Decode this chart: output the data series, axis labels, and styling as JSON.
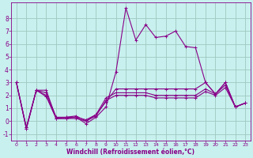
{
  "xlabel": "Windchill (Refroidissement éolien,°C)",
  "background_color": "#c8f0ee",
  "grid_color": "#a0c8c0",
  "line_color": "#880088",
  "xlim": [
    -0.5,
    23.5
  ],
  "ylim": [
    -1.5,
    9.2
  ],
  "yticks": [
    -1,
    0,
    1,
    2,
    3,
    4,
    5,
    6,
    7,
    8
  ],
  "xticks": [
    0,
    1,
    2,
    3,
    4,
    5,
    6,
    7,
    8,
    9,
    10,
    11,
    12,
    13,
    14,
    15,
    16,
    17,
    18,
    19,
    20,
    21,
    22,
    23
  ],
  "line1_x": [
    0,
    1,
    2,
    3,
    4,
    5,
    6,
    7,
    8,
    9,
    10,
    11,
    12,
    13,
    14,
    15,
    16,
    17,
    18,
    19,
    20,
    21,
    22,
    23
  ],
  "line1_y": [
    3.0,
    -0.6,
    2.4,
    1.9,
    0.2,
    0.2,
    0.3,
    -0.2,
    0.3,
    1.1,
    3.8,
    8.8,
    6.3,
    7.5,
    6.5,
    6.6,
    7.0,
    5.8,
    5.7,
    3.0,
    2.1,
    3.0,
    1.1,
    1.4
  ],
  "line2_x": [
    0,
    1,
    2,
    3,
    4,
    5,
    6,
    7,
    8,
    9,
    10,
    11,
    12,
    13,
    14,
    15,
    16,
    17,
    18,
    19,
    20,
    21,
    22,
    23
  ],
  "line2_y": [
    3.0,
    -0.6,
    2.4,
    2.4,
    0.2,
    0.3,
    0.4,
    0.0,
    0.5,
    1.5,
    2.5,
    2.5,
    2.5,
    2.5,
    2.5,
    2.5,
    2.5,
    2.5,
    2.5,
    3.0,
    2.1,
    3.0,
    1.1,
    1.4
  ],
  "line3_x": [
    0,
    1,
    2,
    3,
    4,
    5,
    6,
    7,
    8,
    9,
    10,
    11,
    12,
    13,
    14,
    15,
    16,
    17,
    18,
    19,
    20,
    21,
    22,
    23
  ],
  "line3_y": [
    3.0,
    -0.5,
    2.4,
    2.2,
    0.3,
    0.3,
    0.3,
    0.1,
    0.5,
    1.8,
    2.2,
    2.2,
    2.2,
    2.2,
    2.0,
    2.0,
    2.0,
    2.0,
    2.0,
    2.5,
    2.1,
    2.8,
    1.1,
    1.4
  ],
  "line4_x": [
    0,
    1,
    2,
    3,
    4,
    5,
    6,
    7,
    8,
    9,
    10,
    11,
    12,
    13,
    14,
    15,
    16,
    17,
    18,
    19,
    20,
    21,
    22,
    23
  ],
  "line4_y": [
    3.0,
    -0.5,
    2.4,
    2.0,
    0.2,
    0.2,
    0.2,
    0.0,
    0.4,
    1.6,
    2.0,
    2.0,
    2.0,
    2.0,
    1.8,
    1.8,
    1.8,
    1.8,
    1.8,
    2.3,
    2.0,
    2.6,
    1.1,
    1.4
  ]
}
